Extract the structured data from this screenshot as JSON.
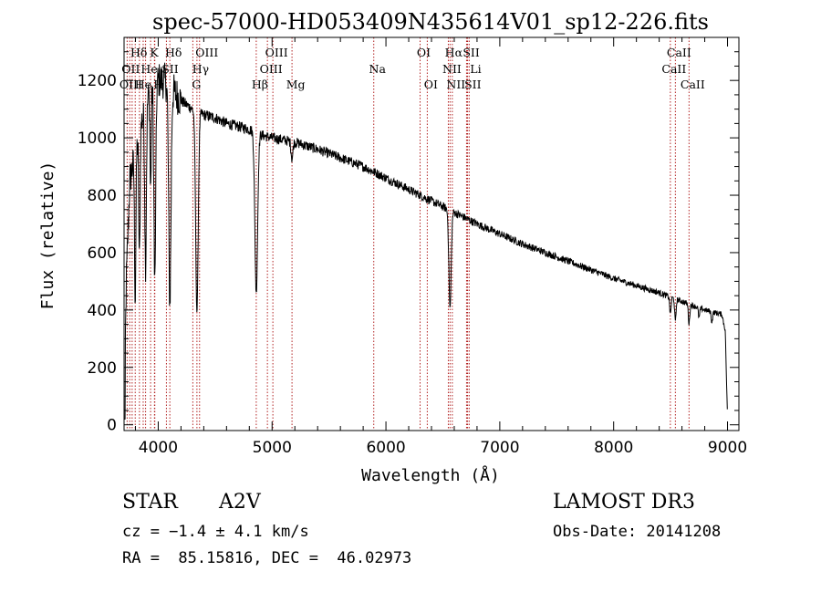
{
  "chart_data": {
    "type": "line",
    "title": "spec-57000-HD053409N435614V01_sp12-226.fits",
    "xlabel": "Wavelength (Å)",
    "ylabel": "Flux (relative)",
    "xlim": [
      3700,
      9100
    ],
    "ylim": [
      -20,
      1350
    ],
    "x_ticks": [
      4000,
      5000,
      6000,
      7000,
      8000,
      9000
    ],
    "y_ticks": [
      0,
      200,
      400,
      600,
      800,
      1000,
      1200
    ],
    "grid": false,
    "line_color": "#000000",
    "marker_color": "#b22222",
    "continuum": [
      [
        3700,
        20
      ],
      [
        3720,
        500
      ],
      [
        3750,
        850
      ],
      [
        3800,
        950
      ],
      [
        3850,
        1050
      ],
      [
        3900,
        1130
      ],
      [
        3950,
        1180
      ],
      [
        4000,
        1200
      ],
      [
        4050,
        1200
      ],
      [
        4100,
        1180
      ],
      [
        4200,
        1130
      ],
      [
        4300,
        1100
      ],
      [
        4400,
        1080
      ],
      [
        4500,
        1070
      ],
      [
        4600,
        1050
      ],
      [
        4700,
        1040
      ],
      [
        4800,
        1030
      ],
      [
        4900,
        1010
      ],
      [
        5000,
        1000
      ],
      [
        5200,
        985
      ],
      [
        5400,
        960
      ],
      [
        5600,
        930
      ],
      [
        5800,
        900
      ],
      [
        6000,
        860
      ],
      [
        6200,
        820
      ],
      [
        6400,
        780
      ],
      [
        6600,
        740
      ],
      [
        6800,
        700
      ],
      [
        7000,
        665
      ],
      [
        7200,
        630
      ],
      [
        7400,
        600
      ],
      [
        7600,
        570
      ],
      [
        7800,
        540
      ],
      [
        8000,
        510
      ],
      [
        8200,
        485
      ],
      [
        8400,
        460
      ],
      [
        8600,
        430
      ],
      [
        8800,
        400
      ],
      [
        8950,
        385
      ],
      [
        8980,
        330
      ],
      [
        9000,
        20
      ]
    ],
    "absorption_lines": [
      {
        "center": 3798,
        "depth": 500,
        "width": 6
      },
      {
        "center": 3835,
        "depth": 450,
        "width": 6
      },
      {
        "center": 3889,
        "depth": 550,
        "width": 7
      },
      {
        "center": 3933,
        "depth": 350,
        "width": 5
      },
      {
        "center": 3970,
        "depth": 700,
        "width": 8
      },
      {
        "center": 4102,
        "depth": 750,
        "width": 10
      },
      {
        "center": 4340,
        "depth": 700,
        "width": 11
      },
      {
        "center": 4861,
        "depth": 560,
        "width": 12
      },
      {
        "center": 5175,
        "depth": 60,
        "width": 8
      },
      {
        "center": 6563,
        "depth": 340,
        "width": 10
      },
      {
        "center": 8498,
        "depth": 60,
        "width": 6
      },
      {
        "center": 8542,
        "depth": 80,
        "width": 6
      },
      {
        "center": 8662,
        "depth": 70,
        "width": 6
      },
      {
        "center": 8750,
        "depth": 35,
        "width": 6
      },
      {
        "center": 8863,
        "depth": 35,
        "width": 6
      }
    ],
    "noise": 12,
    "line_markers": [
      {
        "label": "Hδ",
        "x": 3798,
        "row": 0,
        "dx": 4
      },
      {
        "label": "K",
        "x": 3933,
        "row": 0,
        "dx": 4
      },
      {
        "label": "Hδ",
        "x": 4102,
        "row": 0,
        "dx": 4
      },
      {
        "label": "OIII",
        "x": 4363,
        "row": 0,
        "dx": 8
      },
      {
        "label": "OIII",
        "x": 5007,
        "row": 0,
        "dx": 4
      },
      {
        "label": "OI",
        "x": 6300,
        "row": 0,
        "dx": 4
      },
      {
        "label": "Hα",
        "x": 6563,
        "row": 0,
        "dx": 4
      },
      {
        "label": "SII",
        "x": 6717,
        "row": 0,
        "dx": 4
      },
      {
        "label": "CaII",
        "x": 8542,
        "row": 0,
        "dx": 4
      },
      {
        "label": "OII",
        "x": 3727,
        "row": 1,
        "dx": 4
      },
      {
        "label": "He",
        "x": 3889,
        "row": 1,
        "dx": 4
      },
      {
        "label": "SII",
        "x": 4072,
        "row": 1,
        "dx": 4
      },
      {
        "label": "Hγ",
        "x": 4340,
        "row": 1,
        "dx": 4
      },
      {
        "label": "OIII",
        "x": 4959,
        "row": 1,
        "dx": 4
      },
      {
        "label": "Na",
        "x": 5893,
        "row": 1,
        "dx": 4
      },
      {
        "label": "NII",
        "x": 6548,
        "row": 1,
        "dx": 4
      },
      {
        "label": "Li",
        "x": 6708,
        "row": 1,
        "dx": 10
      },
      {
        "label": "CaII",
        "x": 8498,
        "row": 1,
        "dx": 4
      },
      {
        "label": "OIII",
        "x": 3727,
        "row": 2,
        "dx": 4
      },
      {
        "label": "He",
        "x": 3835,
        "row": 2,
        "dx": 4
      },
      {
        "label": "H",
        "x": 3970,
        "row": 2,
        "dx": 4
      },
      {
        "label": "G",
        "x": 4304,
        "row": 2,
        "dx": 4
      },
      {
        "label": "Hβ",
        "x": 4861,
        "row": 2,
        "dx": 4
      },
      {
        "label": "Mg",
        "x": 5175,
        "row": 2,
        "dx": 4
      },
      {
        "label": "OI",
        "x": 6363,
        "row": 2,
        "dx": 4
      },
      {
        "label": "NII",
        "x": 6583,
        "row": 2,
        "dx": 4
      },
      {
        "label": "SII",
        "x": 6731,
        "row": 2,
        "dx": 4
      },
      {
        "label": "CaII",
        "x": 8662,
        "row": 2,
        "dx": 4
      }
    ],
    "extra_marker_lines": [
      3750,
      3771,
      3868,
      3967,
      6716
    ]
  },
  "info": {
    "object_type": "STAR",
    "subclass": "A2V",
    "redshift": "cz = −1.4 ± 4.1 km/s",
    "coords": "RA =  85.15816, DEC =  46.02973",
    "survey": "LAMOST DR3",
    "obs_date": "Obs-Date: 20141208"
  }
}
